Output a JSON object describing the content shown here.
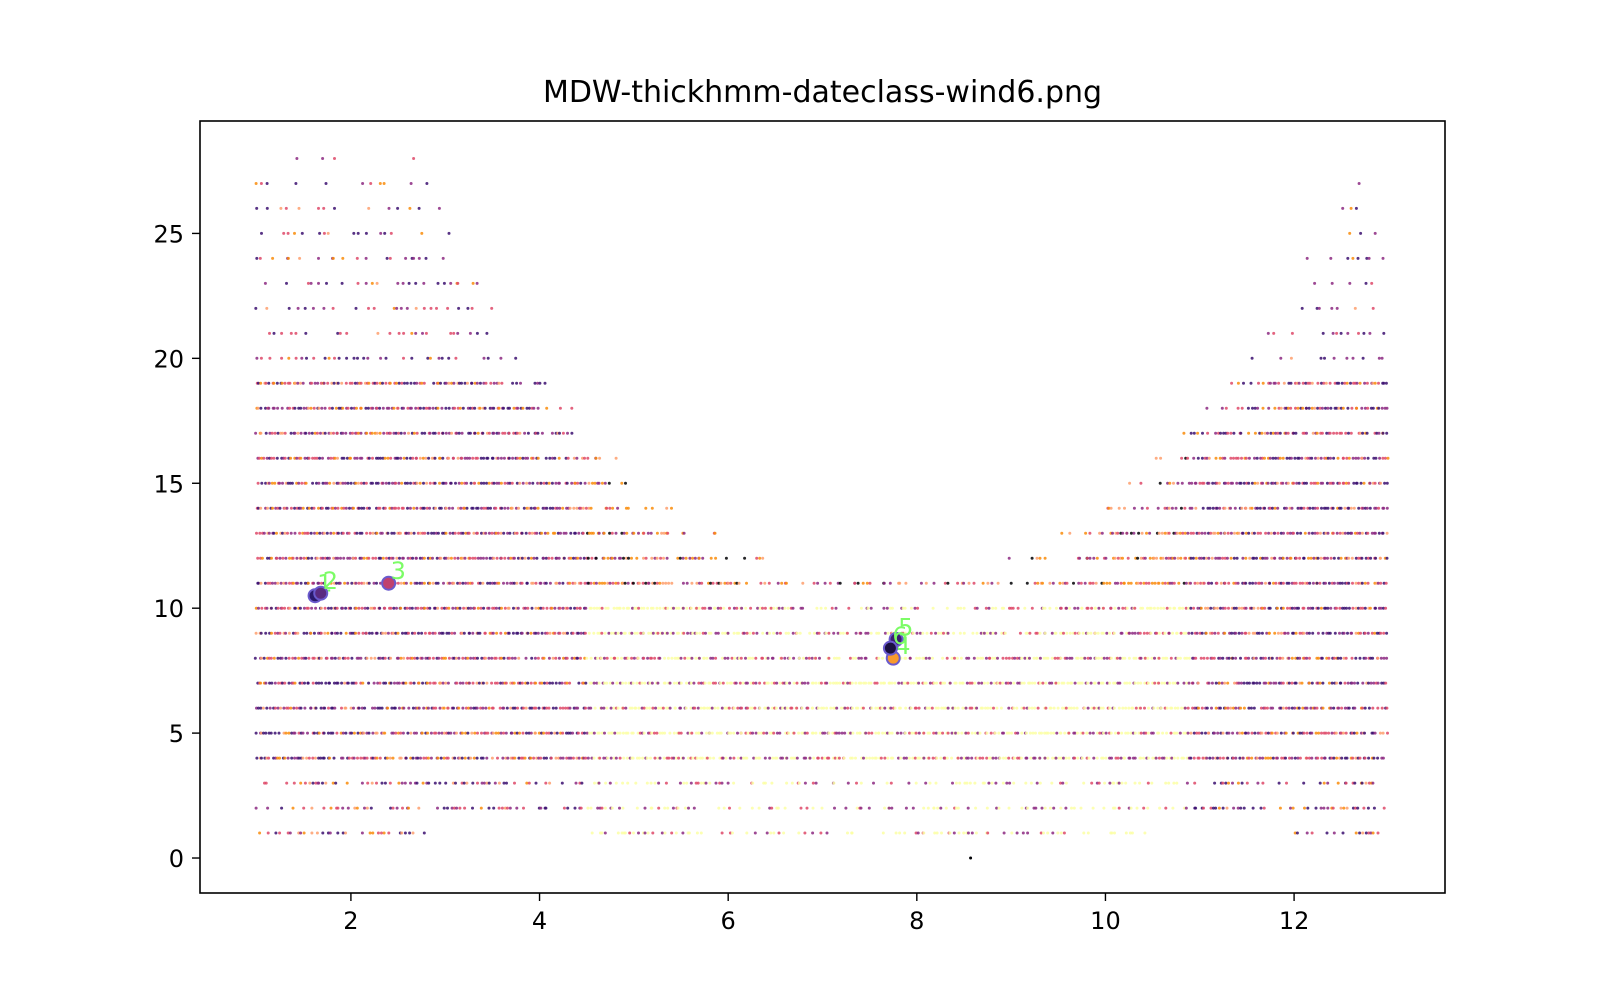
{
  "chart_data": {
    "type": "scatter",
    "title": "MDW-thickhmm-dateclass-wind6.png",
    "xlabel": "",
    "ylabel": "",
    "xlim": [
      0.4,
      13.6
    ],
    "ylim": [
      -1.4,
      29.5
    ],
    "x_ticks": [
      2,
      4,
      6,
      8,
      10,
      12
    ],
    "y_ticks": [
      0,
      5,
      10,
      15,
      20,
      25
    ],
    "grid": false,
    "legend": "none",
    "x_range_points": [
      1.0,
      13.0
    ],
    "y_levels": [
      1,
      2,
      3,
      4,
      5,
      6,
      7,
      8,
      9,
      10,
      11,
      12,
      13,
      14,
      15,
      16,
      17,
      18,
      19,
      20,
      21,
      22,
      23,
      24,
      25,
      26,
      27,
      28
    ],
    "point_colormap": [
      "#000004",
      "#3b0f70",
      "#8c2981",
      "#de4968",
      "#fe9f6d",
      "#f98c0a",
      "#fcffa4"
    ],
    "highlighted_points": [
      {
        "label": "1",
        "x": 1.62,
        "y": 10.5,
        "color": "#2a1a6e"
      },
      {
        "label": "2",
        "x": 1.68,
        "y": 10.6,
        "color": "#5a2a80"
      },
      {
        "label": "3",
        "x": 2.4,
        "y": 11.0,
        "color": "#c0426e"
      },
      {
        "label": "4",
        "x": 7.75,
        "y": 8.0,
        "color": "#f89a2c"
      },
      {
        "label": "5",
        "x": 7.78,
        "y": 8.75,
        "color": "#3a1e70"
      },
      {
        "label": "6",
        "x": 7.72,
        "y": 8.4,
        "color": "#1a1040"
      }
    ],
    "highlight_edge_color": "#6a5acd",
    "highlight_label_color": "#7cfc66"
  }
}
